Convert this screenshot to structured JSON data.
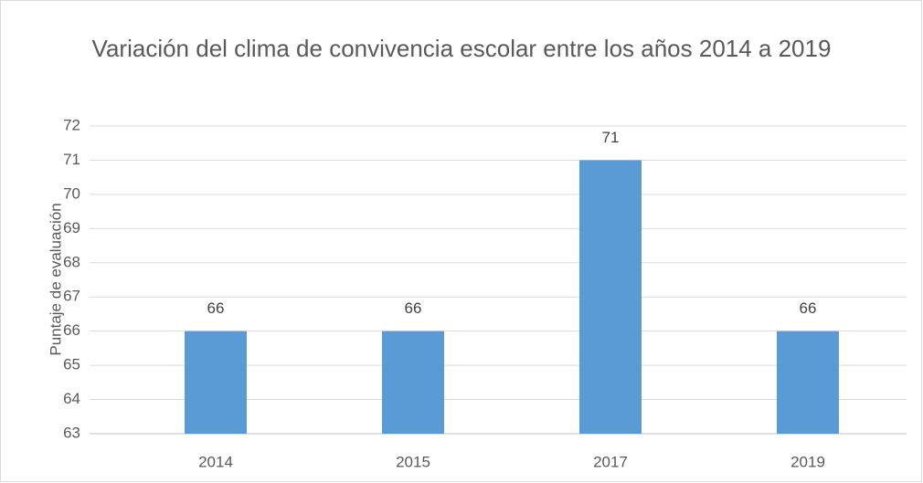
{
  "chart_data": {
    "type": "bar",
    "title": "Variación del clima de convivencia escolar entre los años 2014 a 2019",
    "y_label": "Puntaje de evaluación",
    "categories": [
      "2014",
      "2015",
      "2017",
      "2019"
    ],
    "values": [
      66,
      66,
      71,
      66
    ],
    "color": "#5b9bd5",
    "ylim": [
      63,
      72
    ],
    "yticks": [
      63,
      64,
      65,
      66,
      67,
      68,
      69,
      70,
      71,
      72
    ],
    "grid": true
  }
}
